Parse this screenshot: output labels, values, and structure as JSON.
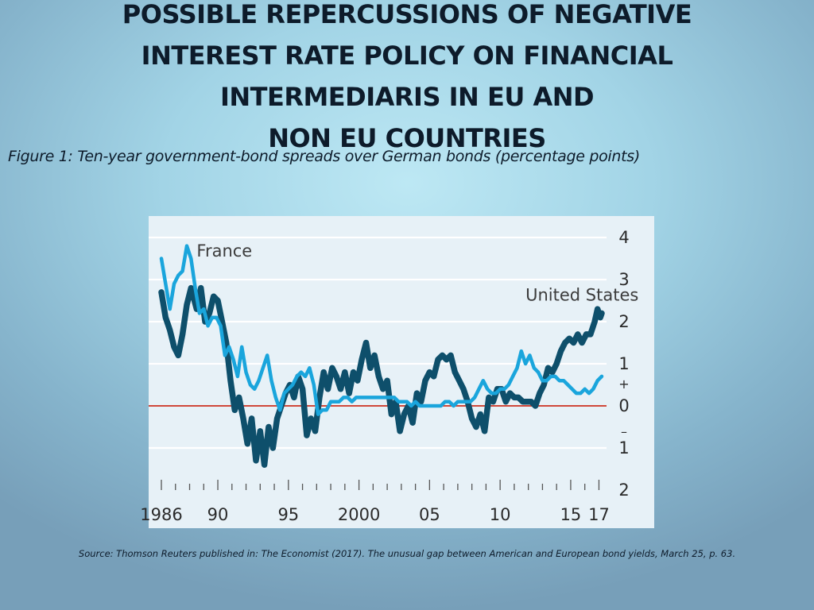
{
  "slide": {
    "title_lines": [
      "POSSIBLE REPERCUSSIONS OF NEGATIVE",
      "INTEREST RATE POLICY ON FINANCIAL",
      "INTERMEDIARIS  IN EU AND",
      "NON EU COUNTRIES"
    ],
    "caption": "Figure 1: Ten-year government-bond spreads over German bonds (percentage points)",
    "source": "Source: Thomson Reuters published in: The Economist (2017). The unusual gap between American and European bond yields, March 25, p. 63."
  },
  "colors": {
    "france": "#1aa5dc",
    "united_states": "#0e4f6b",
    "zero_line": "#d0483a",
    "grid": "#ffffff",
    "axis_text": "#2a2a2a"
  },
  "chart_data": {
    "type": "line",
    "title": "",
    "xlabel": "",
    "ylabel": "",
    "x_range": [
      1986,
      2017.2
    ],
    "ylim": [
      -2,
      4
    ],
    "grid": true,
    "y_ticks": [
      {
        "value": 4,
        "label": "4",
        "sign": ""
      },
      {
        "value": 3,
        "label": "3",
        "sign": ""
      },
      {
        "value": 2,
        "label": "2",
        "sign": ""
      },
      {
        "value": 1,
        "label": "1",
        "sign": "+"
      },
      {
        "value": 0,
        "label": "0",
        "sign": ""
      },
      {
        "value": -1,
        "label": "1",
        "sign": "–"
      },
      {
        "value": -2,
        "label": "2",
        "sign": ""
      }
    ],
    "x_ticks": [
      {
        "value": 1986,
        "label": "1986"
      },
      {
        "value": 1990,
        "label": "90"
      },
      {
        "value": 1995,
        "label": "95"
      },
      {
        "value": 2000,
        "label": "2000"
      },
      {
        "value": 2005,
        "label": "05"
      },
      {
        "value": 2010,
        "label": "10"
      },
      {
        "value": 2015,
        "label": "15"
      },
      {
        "value": 2017,
        "label": "17"
      }
    ],
    "series": [
      {
        "name": "United States",
        "label_at": {
          "x": 2011.8,
          "y": 2.5
        },
        "points": [
          [
            1986.0,
            2.7
          ],
          [
            1986.3,
            2.1
          ],
          [
            1986.6,
            1.8
          ],
          [
            1986.9,
            1.4
          ],
          [
            1987.2,
            1.2
          ],
          [
            1987.5,
            1.7
          ],
          [
            1987.8,
            2.4
          ],
          [
            1988.1,
            2.8
          ],
          [
            1988.5,
            2.3
          ],
          [
            1988.8,
            2.8
          ],
          [
            1989.1,
            2.0
          ],
          [
            1989.4,
            2.2
          ],
          [
            1989.7,
            2.6
          ],
          [
            1990.0,
            2.5
          ],
          [
            1990.3,
            2.0
          ],
          [
            1990.6,
            1.5
          ],
          [
            1990.9,
            0.6
          ],
          [
            1991.2,
            -0.1
          ],
          [
            1991.5,
            0.2
          ],
          [
            1991.8,
            -0.3
          ],
          [
            1992.1,
            -0.9
          ],
          [
            1992.4,
            -0.3
          ],
          [
            1992.7,
            -1.3
          ],
          [
            1993.0,
            -0.6
          ],
          [
            1993.3,
            -1.4
          ],
          [
            1993.6,
            -0.5
          ],
          [
            1993.9,
            -1.0
          ],
          [
            1994.2,
            -0.3
          ],
          [
            1994.5,
            0.0
          ],
          [
            1994.8,
            0.3
          ],
          [
            1995.1,
            0.5
          ],
          [
            1995.4,
            0.2
          ],
          [
            1995.7,
            0.7
          ],
          [
            1996.0,
            0.4
          ],
          [
            1996.3,
            -0.7
          ],
          [
            1996.6,
            -0.3
          ],
          [
            1996.9,
            -0.6
          ],
          [
            1997.2,
            0.2
          ],
          [
            1997.5,
            0.8
          ],
          [
            1997.8,
            0.4
          ],
          [
            1998.1,
            0.9
          ],
          [
            1998.4,
            0.7
          ],
          [
            1998.7,
            0.4
          ],
          [
            1999.0,
            0.8
          ],
          [
            1999.3,
            0.3
          ],
          [
            1999.6,
            0.8
          ],
          [
            1999.9,
            0.6
          ],
          [
            2000.2,
            1.1
          ],
          [
            2000.5,
            1.5
          ],
          [
            2000.8,
            0.9
          ],
          [
            2001.1,
            1.2
          ],
          [
            2001.4,
            0.7
          ],
          [
            2001.7,
            0.4
          ],
          [
            2002.0,
            0.6
          ],
          [
            2002.3,
            -0.2
          ],
          [
            2002.6,
            0.1
          ],
          [
            2002.9,
            -0.6
          ],
          [
            2003.2,
            -0.2
          ],
          [
            2003.5,
            0.0
          ],
          [
            2003.8,
            -0.4
          ],
          [
            2004.1,
            0.3
          ],
          [
            2004.4,
            0.1
          ],
          [
            2004.7,
            0.6
          ],
          [
            2005.0,
            0.8
          ],
          [
            2005.3,
            0.7
          ],
          [
            2005.6,
            1.1
          ],
          [
            2005.9,
            1.2
          ],
          [
            2006.2,
            1.1
          ],
          [
            2006.5,
            1.2
          ],
          [
            2006.8,
            0.8
          ],
          [
            2007.1,
            0.6
          ],
          [
            2007.4,
            0.4
          ],
          [
            2007.7,
            0.1
          ],
          [
            2008.0,
            -0.3
          ],
          [
            2008.3,
            -0.5
          ],
          [
            2008.6,
            -0.2
          ],
          [
            2008.9,
            -0.6
          ],
          [
            2009.2,
            0.2
          ],
          [
            2009.5,
            0.1
          ],
          [
            2009.8,
            0.4
          ],
          [
            2010.1,
            0.4
          ],
          [
            2010.4,
            0.1
          ],
          [
            2010.7,
            0.3
          ],
          [
            2011.0,
            0.2
          ],
          [
            2011.3,
            0.2
          ],
          [
            2011.6,
            0.1
          ],
          [
            2011.9,
            0.1
          ],
          [
            2012.2,
            0.1
          ],
          [
            2012.5,
            0.0
          ],
          [
            2012.8,
            0.3
          ],
          [
            2013.1,
            0.5
          ],
          [
            2013.4,
            0.9
          ],
          [
            2013.7,
            0.8
          ],
          [
            2014.0,
            1.0
          ],
          [
            2014.3,
            1.3
          ],
          [
            2014.6,
            1.5
          ],
          [
            2014.9,
            1.6
          ],
          [
            2015.2,
            1.5
          ],
          [
            2015.5,
            1.7
          ],
          [
            2015.8,
            1.5
          ],
          [
            2016.1,
            1.7
          ],
          [
            2016.4,
            1.7
          ],
          [
            2016.7,
            2.0
          ],
          [
            2016.9,
            2.3
          ],
          [
            2017.1,
            2.1
          ],
          [
            2017.2,
            2.2
          ]
        ]
      },
      {
        "name": "France",
        "label_at": {
          "x": 1988.5,
          "y": 3.55
        },
        "points": [
          [
            1986.0,
            3.5
          ],
          [
            1986.3,
            2.9
          ],
          [
            1986.6,
            2.3
          ],
          [
            1986.9,
            2.9
          ],
          [
            1987.2,
            3.1
          ],
          [
            1987.5,
            3.2
          ],
          [
            1987.8,
            3.8
          ],
          [
            1988.1,
            3.5
          ],
          [
            1988.4,
            2.8
          ],
          [
            1988.7,
            2.2
          ],
          [
            1989.0,
            2.3
          ],
          [
            1989.3,
            1.9
          ],
          [
            1989.6,
            2.1
          ],
          [
            1989.9,
            2.1
          ],
          [
            1990.2,
            1.9
          ],
          [
            1990.5,
            1.2
          ],
          [
            1990.8,
            1.4
          ],
          [
            1991.1,
            1.1
          ],
          [
            1991.4,
            0.7
          ],
          [
            1991.7,
            1.4
          ],
          [
            1992.0,
            0.8
          ],
          [
            1992.3,
            0.5
          ],
          [
            1992.6,
            0.4
          ],
          [
            1992.9,
            0.6
          ],
          [
            1993.2,
            0.9
          ],
          [
            1993.5,
            1.2
          ],
          [
            1993.8,
            0.6
          ],
          [
            1994.1,
            0.2
          ],
          [
            1994.4,
            -0.1
          ],
          [
            1994.7,
            0.3
          ],
          [
            1995.0,
            0.4
          ],
          [
            1995.3,
            0.5
          ],
          [
            1995.6,
            0.7
          ],
          [
            1995.9,
            0.8
          ],
          [
            1996.2,
            0.7
          ],
          [
            1996.5,
            0.9
          ],
          [
            1996.8,
            0.5
          ],
          [
            1997.1,
            -0.2
          ],
          [
            1997.4,
            -0.1
          ],
          [
            1997.7,
            -0.1
          ],
          [
            1998.0,
            0.1
          ],
          [
            1998.3,
            0.1
          ],
          [
            1998.6,
            0.1
          ],
          [
            1998.9,
            0.2
          ],
          [
            1999.2,
            0.2
          ],
          [
            1999.5,
            0.1
          ],
          [
            1999.8,
            0.2
          ],
          [
            2000.1,
            0.2
          ],
          [
            2000.4,
            0.2
          ],
          [
            2000.7,
            0.2
          ],
          [
            2001.0,
            0.2
          ],
          [
            2001.3,
            0.2
          ],
          [
            2001.6,
            0.2
          ],
          [
            2001.9,
            0.2
          ],
          [
            2002.2,
            0.2
          ],
          [
            2002.5,
            0.2
          ],
          [
            2002.8,
            0.1
          ],
          [
            2003.1,
            0.1
          ],
          [
            2003.4,
            0.1
          ],
          [
            2003.7,
            0.0
          ],
          [
            2004.0,
            0.1
          ],
          [
            2004.3,
            0.0
          ],
          [
            2004.6,
            0.0
          ],
          [
            2004.9,
            0.0
          ],
          [
            2005.2,
            0.0
          ],
          [
            2005.5,
            0.0
          ],
          [
            2005.8,
            0.0
          ],
          [
            2006.1,
            0.1
          ],
          [
            2006.4,
            0.1
          ],
          [
            2006.7,
            0.0
          ],
          [
            2007.0,
            0.1
          ],
          [
            2007.3,
            0.1
          ],
          [
            2007.6,
            0.1
          ],
          [
            2007.9,
            0.1
          ],
          [
            2008.2,
            0.2
          ],
          [
            2008.5,
            0.4
          ],
          [
            2008.8,
            0.6
          ],
          [
            2009.1,
            0.4
          ],
          [
            2009.4,
            0.3
          ],
          [
            2009.7,
            0.3
          ],
          [
            2010.0,
            0.4
          ],
          [
            2010.3,
            0.4
          ],
          [
            2010.6,
            0.5
          ],
          [
            2010.9,
            0.7
          ],
          [
            2011.2,
            0.9
          ],
          [
            2011.5,
            1.3
          ],
          [
            2011.8,
            1.0
          ],
          [
            2012.1,
            1.2
          ],
          [
            2012.4,
            0.9
          ],
          [
            2012.7,
            0.8
          ],
          [
            2013.0,
            0.6
          ],
          [
            2013.3,
            0.6
          ],
          [
            2013.6,
            0.7
          ],
          [
            2013.9,
            0.7
          ],
          [
            2014.2,
            0.6
          ],
          [
            2014.5,
            0.6
          ],
          [
            2014.8,
            0.5
          ],
          [
            2015.1,
            0.4
          ],
          [
            2015.4,
            0.3
          ],
          [
            2015.7,
            0.3
          ],
          [
            2016.0,
            0.4
          ],
          [
            2016.3,
            0.3
          ],
          [
            2016.6,
            0.4
          ],
          [
            2016.9,
            0.6
          ],
          [
            2017.2,
            0.7
          ]
        ]
      }
    ]
  }
}
